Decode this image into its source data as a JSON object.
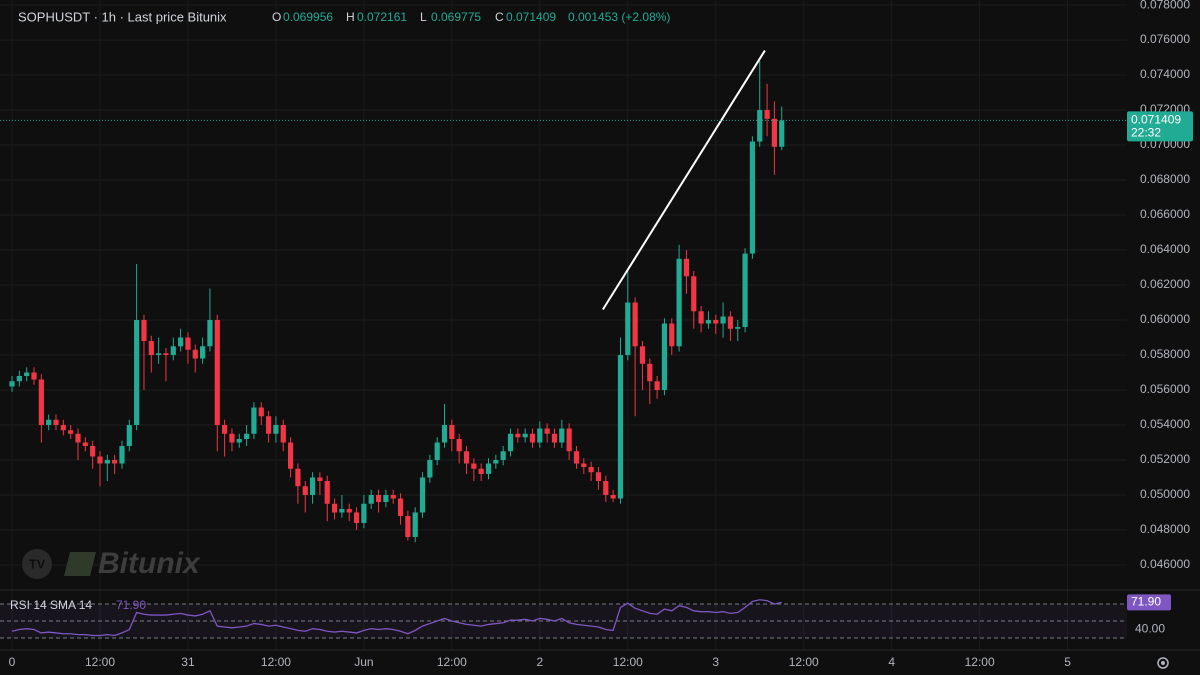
{
  "header": {
    "symbol_line": "SOPHUSDT · 1h · Last price Bitunix",
    "ohlc": [
      {
        "label": "O",
        "value": "0.069956"
      },
      {
        "label": "H",
        "value": "0.072161"
      },
      {
        "label": "L",
        "value": "0.069775"
      },
      {
        "label": "C",
        "value": "0.071409"
      }
    ],
    "change": "0.001453 (+2.08%)"
  },
  "watermark": "Bitunix",
  "chart_data": [
    {
      "type": "candlestick",
      "x": [
        0,
        1,
        2,
        3,
        4,
        5,
        6,
        7,
        8,
        9,
        10,
        11,
        12,
        13,
        14,
        15,
        16,
        17,
        18,
        19,
        20,
        21,
        22,
        23,
        24,
        25,
        26,
        27,
        28,
        29,
        30,
        31,
        32,
        33,
        34,
        35,
        36,
        37,
        38,
        39,
        40,
        41,
        42,
        43,
        44,
        45,
        46,
        47,
        48,
        49,
        50,
        51,
        52,
        53,
        54,
        55,
        56,
        57,
        58,
        59,
        60,
        61,
        62,
        63,
        64,
        65,
        66,
        67,
        68,
        69,
        70,
        71,
        72,
        73,
        74,
        75,
        76,
        77,
        78,
        79,
        80,
        81,
        82,
        83,
        84,
        85,
        86,
        87,
        88,
        89,
        90,
        91,
        92,
        93,
        94,
        95,
        96,
        97,
        98,
        99,
        100,
        101,
        102,
        103,
        104,
        105
      ],
      "open": [
        0.0562,
        0.0565,
        0.0568,
        0.057,
        0.0566,
        0.054,
        0.0543,
        0.054,
        0.0537,
        0.0535,
        0.053,
        0.0528,
        0.0522,
        0.0518,
        0.052,
        0.0518,
        0.0528,
        0.054,
        0.06,
        0.0588,
        0.058,
        0.0581,
        0.058,
        0.0585,
        0.059,
        0.0583,
        0.0578,
        0.0585,
        0.06,
        0.054,
        0.0535,
        0.053,
        0.0532,
        0.0535,
        0.055,
        0.0545,
        0.0535,
        0.054,
        0.053,
        0.0515,
        0.0505,
        0.05,
        0.051,
        0.0508,
        0.0495,
        0.049,
        0.0492,
        0.049,
        0.0484,
        0.0495,
        0.05,
        0.0496,
        0.05,
        0.0498,
        0.0488,
        0.0476,
        0.049,
        0.051,
        0.052,
        0.053,
        0.054,
        0.0532,
        0.0525,
        0.0518,
        0.0515,
        0.0512,
        0.0518,
        0.052,
        0.0525,
        0.0535,
        0.0533,
        0.0535,
        0.053,
        0.0538,
        0.0535,
        0.053,
        0.0538,
        0.0525,
        0.0518,
        0.0516,
        0.0513,
        0.0508,
        0.05,
        0.0498,
        0.058,
        0.061,
        0.0585,
        0.0575,
        0.0565,
        0.056,
        0.0598,
        0.0585,
        0.0635,
        0.0625,
        0.0605,
        0.0598,
        0.06,
        0.0598,
        0.0602,
        0.0595,
        0.0596,
        0.0638,
        0.0702,
        0.072,
        0.0715,
        0.0699
      ],
      "high": [
        0.0568,
        0.0571,
        0.0573,
        0.0573,
        0.0569,
        0.0546,
        0.0546,
        0.0543,
        0.054,
        0.0538,
        0.0533,
        0.0531,
        0.0525,
        0.0523,
        0.0523,
        0.0531,
        0.0543,
        0.0632,
        0.0603,
        0.0591,
        0.059,
        0.0584,
        0.059,
        0.0595,
        0.0593,
        0.0586,
        0.059,
        0.0618,
        0.0603,
        0.0543,
        0.0538,
        0.0535,
        0.054,
        0.0553,
        0.0553,
        0.0548,
        0.0545,
        0.0543,
        0.0533,
        0.0518,
        0.0508,
        0.0513,
        0.0513,
        0.0511,
        0.0498,
        0.05,
        0.0495,
        0.0493,
        0.05,
        0.0503,
        0.0503,
        0.0503,
        0.0503,
        0.0501,
        0.0491,
        0.0493,
        0.0513,
        0.0523,
        0.0533,
        0.0552,
        0.0543,
        0.0535,
        0.0528,
        0.0521,
        0.0518,
        0.0521,
        0.0523,
        0.0528,
        0.0538,
        0.0538,
        0.0538,
        0.0538,
        0.0542,
        0.0541,
        0.0538,
        0.0543,
        0.0541,
        0.0528,
        0.0521,
        0.0519,
        0.0516,
        0.0511,
        0.0503,
        0.059,
        0.0628,
        0.0613,
        0.0588,
        0.0578,
        0.0568,
        0.0601,
        0.0601,
        0.0643,
        0.064,
        0.0628,
        0.0608,
        0.0605,
        0.0603,
        0.061,
        0.0605,
        0.06,
        0.0641,
        0.0705,
        0.0748,
        0.0735,
        0.0725,
        0.0722
      ],
      "low": [
        0.0559,
        0.0562,
        0.0565,
        0.0563,
        0.053,
        0.0537,
        0.0537,
        0.0534,
        0.0532,
        0.052,
        0.0525,
        0.0515,
        0.0505,
        0.0508,
        0.0512,
        0.0515,
        0.0525,
        0.0537,
        0.056,
        0.057,
        0.0575,
        0.0565,
        0.0577,
        0.0582,
        0.0575,
        0.057,
        0.0575,
        0.0582,
        0.0525,
        0.0522,
        0.0525,
        0.0527,
        0.0528,
        0.0532,
        0.054,
        0.053,
        0.053,
        0.0525,
        0.051,
        0.0495,
        0.049,
        0.0495,
        0.05,
        0.0485,
        0.0486,
        0.0487,
        0.0485,
        0.048,
        0.0481,
        0.0492,
        0.049,
        0.0493,
        0.0495,
        0.0483,
        0.0474,
        0.0473,
        0.0487,
        0.0507,
        0.0517,
        0.0527,
        0.0525,
        0.0518,
        0.0512,
        0.0508,
        0.0508,
        0.0509,
        0.0515,
        0.0517,
        0.0522,
        0.053,
        0.053,
        0.0527,
        0.0527,
        0.053,
        0.0527,
        0.0527,
        0.052,
        0.0515,
        0.0512,
        0.0508,
        0.0503,
        0.0496,
        0.0496,
        0.0495,
        0.0577,
        0.0545,
        0.056,
        0.0552,
        0.0555,
        0.0557,
        0.058,
        0.0582,
        0.0615,
        0.0595,
        0.0593,
        0.0595,
        0.0592,
        0.059,
        0.0588,
        0.0588,
        0.0593,
        0.0635,
        0.0699,
        0.0705,
        0.0683,
        0.0697
      ],
      "close": [
        0.0565,
        0.0568,
        0.057,
        0.0566,
        0.054,
        0.0543,
        0.054,
        0.0537,
        0.0535,
        0.053,
        0.0528,
        0.0522,
        0.0518,
        0.052,
        0.0518,
        0.0528,
        0.054,
        0.06,
        0.0588,
        0.058,
        0.0581,
        0.058,
        0.0585,
        0.059,
        0.0583,
        0.0578,
        0.0585,
        0.06,
        0.054,
        0.0535,
        0.053,
        0.0532,
        0.0535,
        0.055,
        0.0545,
        0.0535,
        0.054,
        0.053,
        0.0515,
        0.0505,
        0.05,
        0.051,
        0.0508,
        0.0495,
        0.049,
        0.0492,
        0.049,
        0.0484,
        0.0495,
        0.05,
        0.0496,
        0.05,
        0.0498,
        0.0488,
        0.0476,
        0.049,
        0.051,
        0.052,
        0.053,
        0.054,
        0.0532,
        0.0525,
        0.0518,
        0.0515,
        0.0512,
        0.0518,
        0.052,
        0.0525,
        0.0535,
        0.0533,
        0.0535,
        0.053,
        0.0538,
        0.0535,
        0.053,
        0.0538,
        0.0525,
        0.0518,
        0.0516,
        0.0513,
        0.0508,
        0.05,
        0.0498,
        0.058,
        0.061,
        0.0585,
        0.0575,
        0.0565,
        0.056,
        0.0598,
        0.0585,
        0.0635,
        0.0625,
        0.0605,
        0.0598,
        0.06,
        0.0598,
        0.0602,
        0.0595,
        0.0596,
        0.0638,
        0.0702,
        0.072,
        0.0715,
        0.0699,
        0.0714
      ],
      "up_color": "#22ab94",
      "down_color": "#f23645",
      "xlim": [
        -1.64,
        152.1
      ],
      "xticks": [
        {
          "value": 0,
          "label": "0"
        },
        {
          "value": 12,
          "label": "12:00"
        },
        {
          "value": 24,
          "label": "31"
        },
        {
          "value": 36,
          "label": "12:00"
        },
        {
          "value": 48,
          "label": "Jun"
        },
        {
          "value": 60,
          "label": "12:00"
        },
        {
          "value": 72,
          "label": "2"
        },
        {
          "value": 84,
          "label": "12:00"
        },
        {
          "value": 96,
          "label": "3"
        },
        {
          "value": 108,
          "label": "12:00"
        },
        {
          "value": 120,
          "label": "4"
        },
        {
          "value": 132,
          "label": "12:00"
        },
        {
          "value": 144,
          "label": "5"
        }
      ],
      "ylim": [
        0.04457,
        0.07829
      ],
      "yticks": [
        {
          "value": 0.046,
          "label": "0.046000"
        },
        {
          "value": 0.048,
          "label": "0.048000"
        },
        {
          "value": 0.05,
          "label": "0.050000"
        },
        {
          "value": 0.052,
          "label": "0.052000"
        },
        {
          "value": 0.054,
          "label": "0.054000"
        },
        {
          "value": 0.056,
          "label": "0.056000"
        },
        {
          "value": 0.058,
          "label": "0.058000"
        },
        {
          "value": 0.06,
          "label": "0.060000"
        },
        {
          "value": 0.062,
          "label": "0.062000"
        },
        {
          "value": 0.064,
          "label": "0.064000"
        },
        {
          "value": 0.066,
          "label": "0.066000"
        },
        {
          "value": 0.068,
          "label": "0.068000"
        },
        {
          "value": 0.07,
          "label": "0.070000"
        },
        {
          "value": 0.072,
          "label": "0.072000"
        },
        {
          "value": 0.074,
          "label": "0.074000"
        },
        {
          "value": 0.076,
          "label": "0.076000"
        },
        {
          "value": 0.078,
          "label": "0.078000"
        }
      ],
      "grid": true,
      "last_price": {
        "value": 0.071409,
        "label": "0.071409"
      },
      "countdown": "22:32",
      "trendline": {
        "x": [
          80.6,
          102.7
        ],
        "y": [
          0.0606,
          0.0754
        ],
        "color": "#ffffff"
      }
    },
    {
      "type": "line",
      "title": "RSI 14 SMA 14",
      "value_label": "71.90",
      "color": "#7e57c2",
      "values": [
        38,
        40,
        41,
        40,
        36,
        37,
        36,
        35,
        35,
        34,
        34,
        33,
        33,
        34,
        33,
        36,
        40,
        60,
        58,
        57,
        57,
        57,
        58,
        59,
        57,
        56,
        58,
        62,
        44,
        43,
        42,
        43,
        44,
        47,
        46,
        44,
        45,
        43,
        41,
        39,
        38,
        41,
        40,
        38,
        37,
        38,
        37,
        36,
        39,
        41,
        40,
        41,
        40,
        38,
        35,
        39,
        44,
        47,
        50,
        53,
        50,
        48,
        46,
        45,
        44,
        46,
        47,
        48,
        51,
        51,
        52,
        50,
        53,
        52,
        50,
        53,
        48,
        46,
        45,
        44,
        43,
        40,
        39,
        66,
        71,
        65,
        62,
        59,
        58,
        64,
        62,
        68,
        66,
        62,
        61,
        61,
        60,
        61,
        59,
        60,
        66,
        73,
        75,
        74,
        70,
        71.9
      ],
      "ylim": [
        15.9,
        86.5
      ],
      "yticks": [
        {
          "value": 40,
          "label": "40.00"
        }
      ],
      "bands": [
        30,
        50,
        70
      ]
    }
  ]
}
